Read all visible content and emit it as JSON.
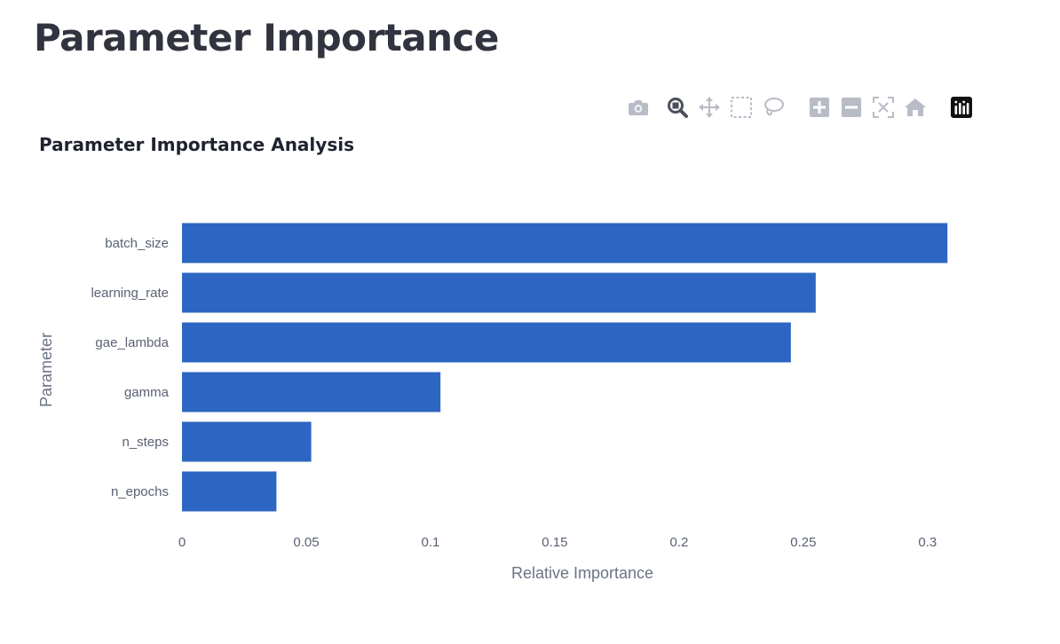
{
  "page": {
    "title": "Parameter Importance"
  },
  "toolbar": {
    "icons": [
      "camera-icon",
      "zoom-icon",
      "pan-icon",
      "box-select-icon",
      "lasso-select-icon",
      "zoom-in-icon",
      "zoom-out-icon",
      "autoscale-icon",
      "reset-axes-icon",
      "plotly-logo-icon"
    ]
  },
  "chart_data": {
    "type": "bar",
    "orientation": "horizontal",
    "title": "Parameter Importance Analysis",
    "xlabel": "Relative Importance",
    "ylabel": "Parameter",
    "categories": [
      "batch_size",
      "learning_rate",
      "gae_lambda",
      "gamma",
      "n_steps",
      "n_epochs"
    ],
    "values": [
      0.308,
      0.255,
      0.245,
      0.104,
      0.052,
      0.038
    ],
    "xlim": [
      0,
      0.3165
    ],
    "xticks": [
      0,
      0.05,
      0.1,
      0.15,
      0.2,
      0.25,
      0.3
    ],
    "xtick_labels": [
      "0",
      "0.05",
      "0.1",
      "0.15",
      "0.2",
      "0.25",
      "0.3"
    ],
    "bar_color": "#2c66c2",
    "grid": false,
    "legend": "none"
  }
}
